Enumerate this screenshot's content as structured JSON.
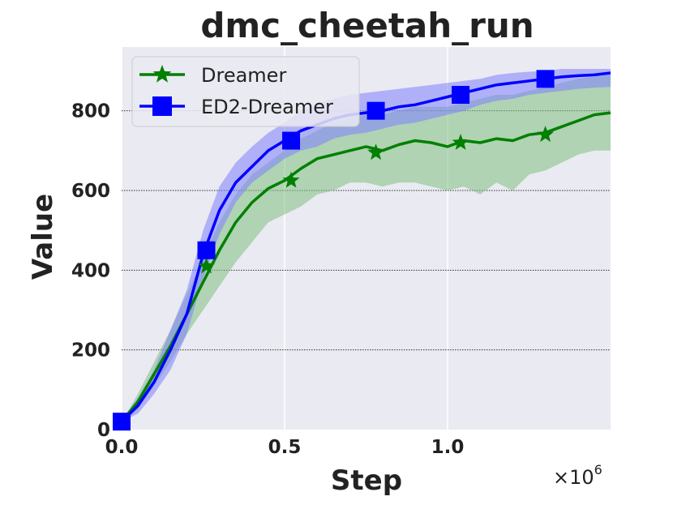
{
  "chart_data": {
    "type": "line",
    "title": "dmc_cheetah_run",
    "xlabel": "Step",
    "ylabel": "Value",
    "x_offset_label": "×10",
    "x_offset_exp": "6",
    "xlim": [
      0.0,
      1.5
    ],
    "ylim": [
      0,
      960
    ],
    "xticks": [
      0.0,
      0.5,
      1.0
    ],
    "xtick_labels": [
      "0.0",
      "0.5",
      "1.0"
    ],
    "yticks": [
      0,
      200,
      400,
      600,
      800
    ],
    "ytick_labels": [
      "0",
      "200",
      "400",
      "600",
      "800"
    ],
    "grid": true,
    "legend_position": "upper-left",
    "colors": {
      "background": "#eaeaf2",
      "dreamer": "#008000",
      "dreamer_band": "#7fbf7f",
      "ed2": "#0000ff",
      "ed2_band": "#7f7fff"
    },
    "series": [
      {
        "name": "Dreamer",
        "marker": "star",
        "x": [
          0.0,
          0.05,
          0.1,
          0.15,
          0.2,
          0.25,
          0.3,
          0.35,
          0.4,
          0.45,
          0.5,
          0.55,
          0.6,
          0.65,
          0.7,
          0.75,
          0.8,
          0.85,
          0.9,
          0.95,
          1.0,
          1.05,
          1.1,
          1.15,
          1.2,
          1.25,
          1.3,
          1.35,
          1.4,
          1.45,
          1.5
        ],
        "y": [
          20,
          70,
          140,
          210,
          290,
          370,
          450,
          520,
          570,
          605,
          625,
          655,
          680,
          690,
          700,
          710,
          700,
          715,
          725,
          720,
          710,
          725,
          720,
          730,
          725,
          740,
          745,
          760,
          775,
          790,
          795
        ],
        "lower": [
          20,
          50,
          110,
          170,
          240,
          300,
          360,
          420,
          470,
          520,
          540,
          560,
          590,
          600,
          620,
          620,
          610,
          620,
          620,
          610,
          600,
          610,
          590,
          620,
          600,
          640,
          650,
          670,
          690,
          700,
          700
        ],
        "upper": [
          20,
          90,
          170,
          250,
          340,
          430,
          520,
          590,
          640,
          670,
          700,
          730,
          750,
          770,
          780,
          790,
          790,
          800,
          810,
          810,
          810,
          820,
          830,
          840,
          840,
          850,
          860,
          870,
          880,
          885,
          890
        ],
        "marker_x": [
          0.0,
          0.26,
          0.52,
          0.78,
          1.04,
          1.3
        ],
        "marker_y": [
          20,
          410,
          625,
          695,
          720,
          740
        ]
      },
      {
        "name": "ED2-Dreamer",
        "marker": "square",
        "x": [
          0.0,
          0.05,
          0.1,
          0.15,
          0.2,
          0.25,
          0.3,
          0.35,
          0.4,
          0.45,
          0.5,
          0.55,
          0.6,
          0.65,
          0.7,
          0.75,
          0.8,
          0.85,
          0.9,
          0.95,
          1.0,
          1.05,
          1.1,
          1.15,
          1.2,
          1.25,
          1.3,
          1.35,
          1.4,
          1.45,
          1.5
        ],
        "y": [
          20,
          60,
          120,
          200,
          290,
          440,
          550,
          620,
          660,
          700,
          725,
          750,
          765,
          780,
          790,
          795,
          800,
          810,
          815,
          825,
          835,
          845,
          855,
          865,
          870,
          875,
          880,
          885,
          888,
          890,
          895
        ],
        "lower": [
          20,
          40,
          90,
          150,
          240,
          380,
          490,
          570,
          620,
          650,
          680,
          700,
          710,
          730,
          740,
          745,
          755,
          765,
          770,
          780,
          790,
          800,
          815,
          825,
          830,
          840,
          845,
          850,
          855,
          858,
          860
        ],
        "upper": [
          20,
          80,
          150,
          250,
          350,
          500,
          610,
          670,
          710,
          745,
          770,
          800,
          820,
          830,
          840,
          845,
          850,
          855,
          860,
          865,
          870,
          875,
          880,
          890,
          895,
          898,
          900,
          905,
          905,
          905,
          905
        ],
        "marker_x": [
          0.0,
          0.26,
          0.52,
          0.78,
          1.04,
          1.3
        ],
        "marker_y": [
          20,
          450,
          725,
          800,
          840,
          880
        ]
      }
    ]
  }
}
